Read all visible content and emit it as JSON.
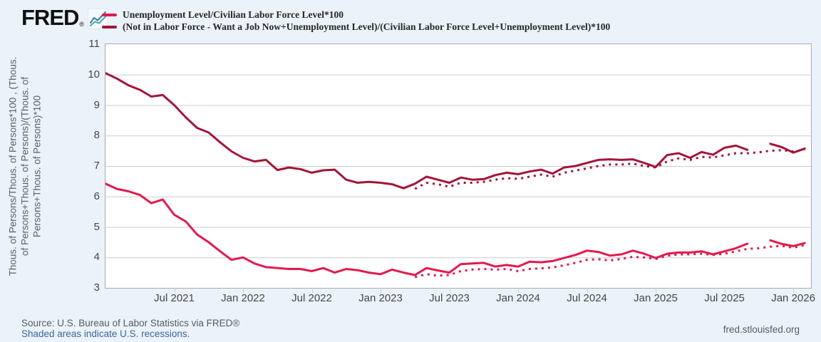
{
  "page_title": "FRED Graph",
  "header": {
    "logo_text": "FRED",
    "registered_mark": "®"
  },
  "legend": [
    {
      "label": "Unemployment Level/Civilian Labor Force Level*100",
      "color": "#e11a4e"
    },
    {
      "label": "(Not in Labor Force - Want a Job Now+Unemployment Level)/(Civilian Labor Force Level+Unemployment Level)*100",
      "color": "#a31538"
    }
  ],
  "chart_data": {
    "type": "line",
    "title": "",
    "x_start": "Jan 2021",
    "x_end": "Feb 2026",
    "x_unit": "month",
    "ylim": [
      3,
      11
    ],
    "y_ticks": [
      3,
      4,
      5,
      6,
      7,
      8,
      9,
      10,
      11
    ],
    "ylabel_lines": [
      "Thous. of Persons/Thous. of Persons*100 , (Thous.",
      "of Persons+Thous. of Persons)/(Thous. of",
      "Persons+Thous. of Persons)*100"
    ],
    "x_ticks": [
      {
        "label": "Jul 2021",
        "month": 6
      },
      {
        "label": "Jan 2022",
        "month": 12
      },
      {
        "label": "Jul 2022",
        "month": 18
      },
      {
        "label": "Jan 2023",
        "month": 24
      },
      {
        "label": "Jul 2023",
        "month": 30
      },
      {
        "label": "Jan 2024",
        "month": 36
      },
      {
        "label": "Jul 2024",
        "month": 42
      },
      {
        "label": "Jan 2025",
        "month": 48
      },
      {
        "label": "Jul 2025",
        "month": 54
      },
      {
        "label": "Jan 2026",
        "month": 60
      }
    ],
    "grid": true,
    "legend_position": "top",
    "series": [
      {
        "name": "dotted-pink-line",
        "color": "#e11a4e",
        "line_style": "dotted",
        "start_month": 27,
        "values": [
          3.35,
          3.45,
          3.4,
          3.42,
          3.55,
          3.6,
          3.62,
          3.6,
          3.62,
          3.55,
          3.62,
          3.64,
          3.67,
          3.74,
          3.82,
          3.92,
          3.94,
          3.9,
          3.95,
          4.02,
          4.0,
          3.95,
          4.05,
          4.1,
          4.1,
          4.12,
          4.08,
          4.12,
          4.2,
          4.28,
          4.3,
          4.35,
          4.38,
          4.32,
          4.4
        ]
      },
      {
        "name": "dotted-dark-red-line",
        "color": "#a31538",
        "line_style": "dotted",
        "start_month": 27,
        "values": [
          6.25,
          6.45,
          6.4,
          6.32,
          6.45,
          6.45,
          6.48,
          6.55,
          6.6,
          6.58,
          6.65,
          6.72,
          6.65,
          6.78,
          6.85,
          6.92,
          7.0,
          7.05,
          7.05,
          7.08,
          7.0,
          6.95,
          7.15,
          7.25,
          7.2,
          7.3,
          7.28,
          7.35,
          7.42,
          7.42,
          7.45,
          7.5,
          7.52,
          7.48,
          7.53
        ]
      },
      {
        "name": "Unemployment Level/Civilian Labor Force Level*100",
        "color": "#e11a4e",
        "line_style": "solid",
        "start_month": 0,
        "values": [
          6.42,
          6.25,
          6.17,
          6.05,
          5.78,
          5.9,
          5.4,
          5.18,
          4.75,
          4.5,
          4.2,
          3.92,
          4.0,
          3.8,
          3.68,
          3.65,
          3.62,
          3.62,
          3.55,
          3.65,
          3.5,
          3.62,
          3.58,
          3.5,
          3.45,
          3.6,
          3.5,
          3.42,
          3.65,
          3.57,
          3.5,
          3.78,
          3.8,
          3.82,
          3.7,
          3.75,
          3.7,
          3.86,
          3.84,
          3.88,
          3.98,
          4.08,
          4.22,
          4.18,
          4.06,
          4.1,
          4.22,
          4.12,
          3.98,
          4.12,
          4.16,
          4.16,
          4.2,
          4.1,
          4.2,
          4.3,
          4.45,
          null,
          4.56,
          4.44,
          4.37,
          4.47
        ]
      },
      {
        "name": "(Not in Labor Force - Want a Job Now+Unemployment Level)/(Civilian Labor Force Level+Unemployment Level)*100",
        "color": "#a31538",
        "line_style": "solid",
        "start_month": 0,
        "values": [
          10.05,
          9.87,
          9.65,
          9.5,
          9.28,
          9.33,
          9.0,
          8.6,
          8.25,
          8.1,
          7.78,
          7.48,
          7.27,
          7.15,
          7.2,
          6.87,
          6.95,
          6.9,
          6.78,
          6.86,
          6.88,
          6.55,
          6.45,
          6.48,
          6.45,
          6.4,
          6.27,
          6.42,
          6.65,
          6.55,
          6.45,
          6.62,
          6.55,
          6.57,
          6.7,
          6.78,
          6.73,
          6.82,
          6.88,
          6.75,
          6.95,
          7.0,
          7.1,
          7.2,
          7.22,
          7.2,
          7.22,
          7.1,
          6.97,
          7.36,
          7.42,
          7.27,
          7.46,
          7.37,
          7.6,
          7.67,
          7.53,
          null,
          7.73,
          7.62,
          7.44,
          7.57
        ]
      }
    ]
  },
  "footer": {
    "source": "Source: U.S. Bureau of Labor Statistics via FRED®",
    "recessions_note": "Shaded areas indicate U.S. recessions.",
    "site": "fred.stlouisfed.org"
  }
}
